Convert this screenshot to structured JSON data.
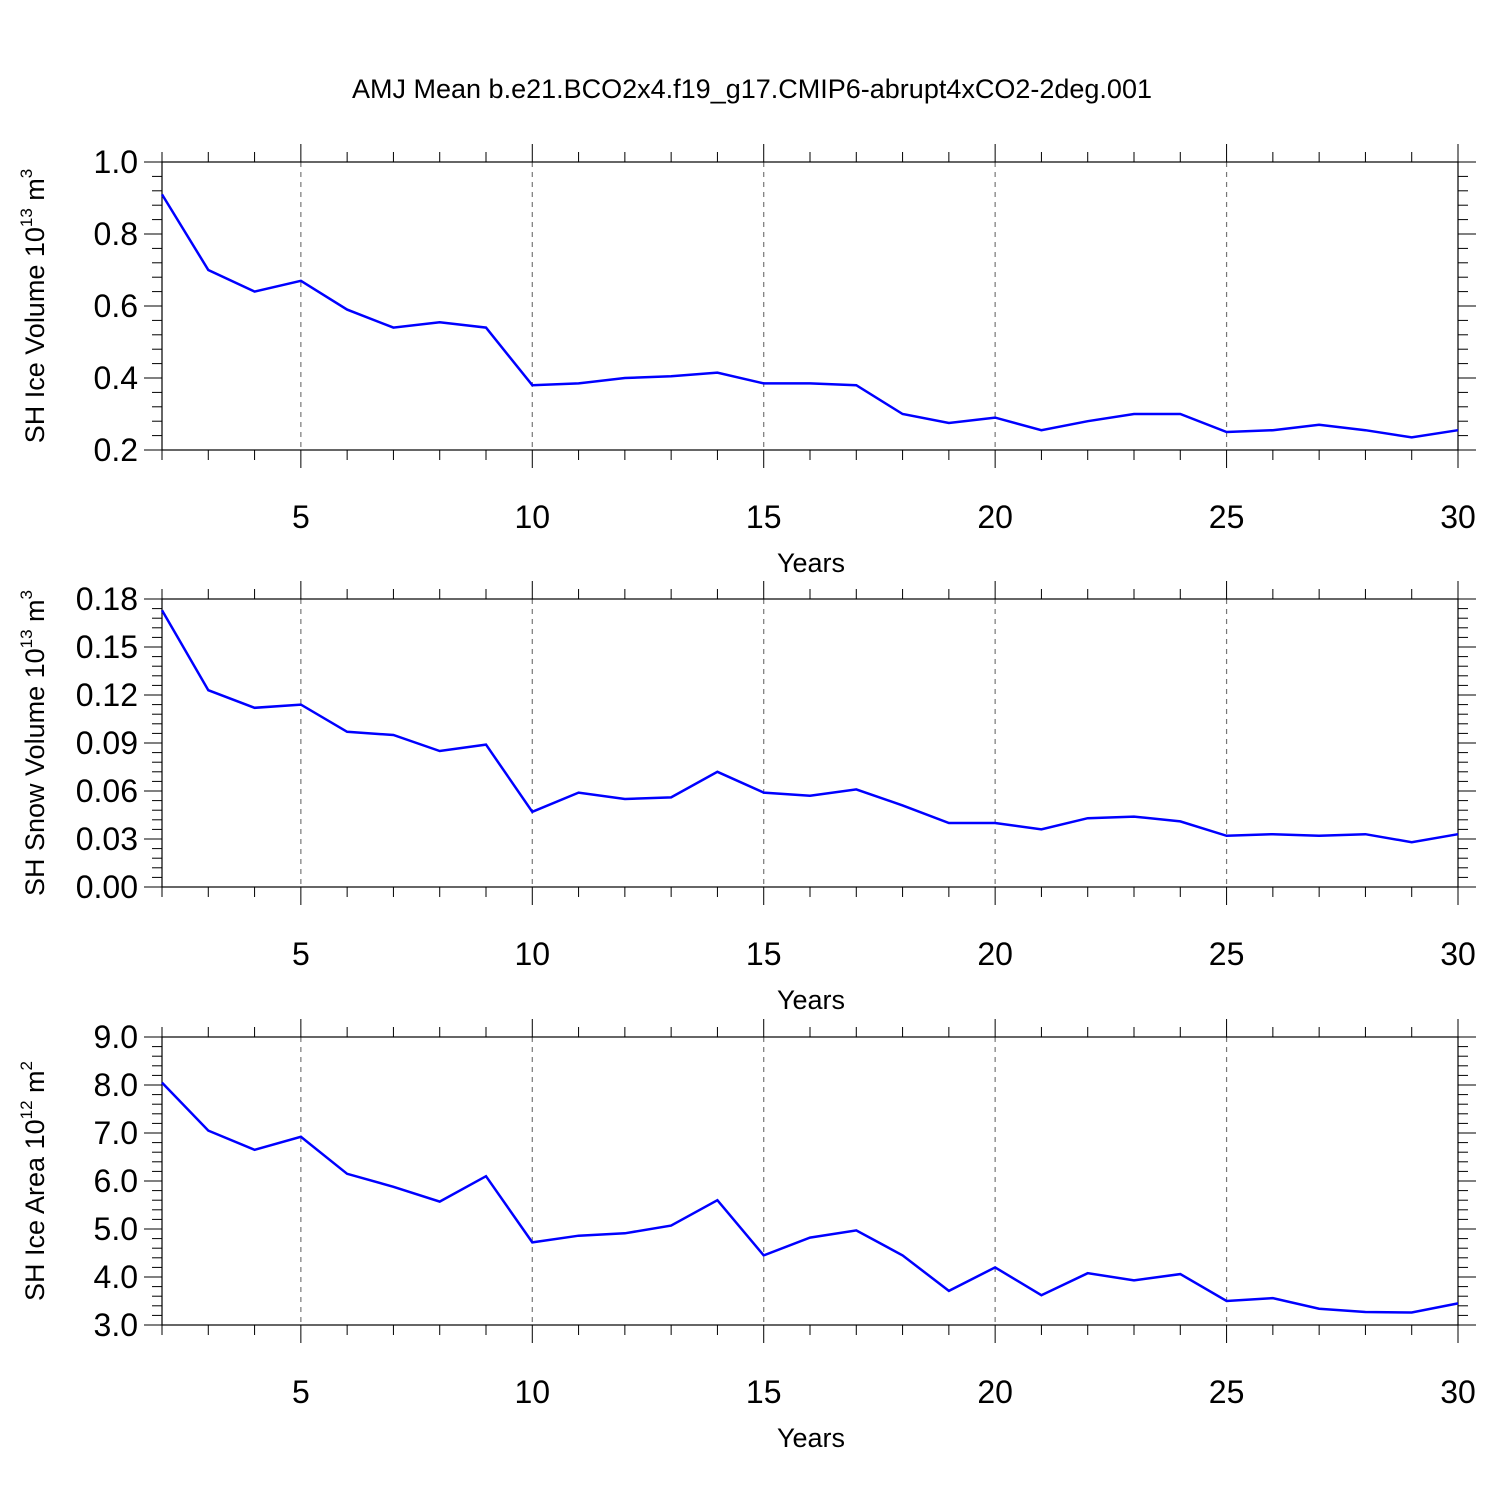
{
  "title": "AMJ Mean b.e21.BCO2x4.f19_g17.CMIP6-abrupt4xCO2-2deg.001",
  "chart_data": [
    {
      "type": "line",
      "ylabel_main": "SH Ice Volume 10",
      "ylabel_exp1": "13",
      "ylabel_unit": " m",
      "ylabel_exp2": "3",
      "xlabel": "Years",
      "xlim": [
        2,
        30
      ],
      "ylim": [
        0.2,
        1.0
      ],
      "xticks": [
        5,
        10,
        15,
        20,
        25,
        30
      ],
      "xtick_labels": [
        "5",
        "10",
        "15",
        "20",
        "25",
        "30"
      ],
      "yticks": [
        0.2,
        0.4,
        0.6,
        0.8,
        1.0
      ],
      "ytick_labels": [
        "0.2",
        "0.4",
        "0.6",
        "0.8",
        "1.0"
      ],
      "yminor_step": 0.04,
      "grid": "vertical-dashed",
      "color": "#0000ff",
      "x": [
        2,
        3,
        4,
        5,
        6,
        7,
        8,
        9,
        10,
        11,
        12,
        13,
        14,
        15,
        16,
        17,
        18,
        19,
        20,
        21,
        22,
        23,
        24,
        25,
        26,
        27,
        28,
        29,
        30
      ],
      "values": [
        0.91,
        0.7,
        0.64,
        0.67,
        0.59,
        0.54,
        0.555,
        0.54,
        0.38,
        0.385,
        0.4,
        0.405,
        0.415,
        0.385,
        0.385,
        0.38,
        0.3,
        0.275,
        0.29,
        0.255,
        0.28,
        0.3,
        0.3,
        0.25,
        0.255,
        0.27,
        0.255,
        0.235,
        0.255
      ]
    },
    {
      "type": "line",
      "ylabel_main": "SH Snow Volume 10",
      "ylabel_exp1": "13",
      "ylabel_unit": " m",
      "ylabel_exp2": "3",
      "xlabel": "Years",
      "xlim": [
        2,
        30
      ],
      "ylim": [
        0.0,
        0.18
      ],
      "xticks": [
        5,
        10,
        15,
        20,
        25,
        30
      ],
      "xtick_labels": [
        "5",
        "10",
        "15",
        "20",
        "25",
        "30"
      ],
      "yticks": [
        0.0,
        0.03,
        0.06,
        0.09,
        0.12,
        0.15,
        0.18
      ],
      "ytick_labels": [
        "0.00",
        "0.03",
        "0.06",
        "0.09",
        "0.12",
        "0.15",
        "0.18"
      ],
      "yminor_step": 0.006,
      "grid": "vertical-dashed",
      "color": "#0000ff",
      "x": [
        2,
        3,
        4,
        5,
        6,
        7,
        8,
        9,
        10,
        11,
        12,
        13,
        14,
        15,
        16,
        17,
        18,
        19,
        20,
        21,
        22,
        23,
        24,
        25,
        26,
        27,
        28,
        29,
        30
      ],
      "values": [
        0.173,
        0.123,
        0.112,
        0.114,
        0.097,
        0.095,
        0.085,
        0.089,
        0.047,
        0.059,
        0.055,
        0.056,
        0.072,
        0.059,
        0.057,
        0.061,
        0.051,
        0.04,
        0.04,
        0.036,
        0.043,
        0.044,
        0.041,
        0.032,
        0.033,
        0.032,
        0.033,
        0.028,
        0.033
      ]
    },
    {
      "type": "line",
      "ylabel_main": "SH Ice Area 10",
      "ylabel_exp1": "12",
      "ylabel_unit": " m",
      "ylabel_exp2": "2",
      "xlabel": "Years",
      "xlim": [
        2,
        30
      ],
      "ylim": [
        3.0,
        9.0
      ],
      "xticks": [
        5,
        10,
        15,
        20,
        25,
        30
      ],
      "xtick_labels": [
        "5",
        "10",
        "15",
        "20",
        "25",
        "30"
      ],
      "yticks": [
        3.0,
        4.0,
        5.0,
        6.0,
        7.0,
        8.0,
        9.0
      ],
      "ytick_labels": [
        "3.0",
        "4.0",
        "5.0",
        "6.0",
        "7.0",
        "8.0",
        "9.0"
      ],
      "yminor_step": 0.2,
      "grid": "vertical-dashed",
      "color": "#0000ff",
      "x": [
        2,
        3,
        4,
        5,
        6,
        7,
        8,
        9,
        10,
        11,
        12,
        13,
        14,
        15,
        16,
        17,
        18,
        19,
        20,
        21,
        22,
        23,
        24,
        25,
        26,
        27,
        28,
        29,
        30
      ],
      "values": [
        8.05,
        7.05,
        6.65,
        6.92,
        6.15,
        5.88,
        5.57,
        6.1,
        4.72,
        4.86,
        4.91,
        5.07,
        5.6,
        4.45,
        4.82,
        4.97,
        4.45,
        3.71,
        4.2,
        3.62,
        4.08,
        3.93,
        4.06,
        3.5,
        3.56,
        3.34,
        3.27,
        3.26,
        3.45
      ]
    }
  ]
}
